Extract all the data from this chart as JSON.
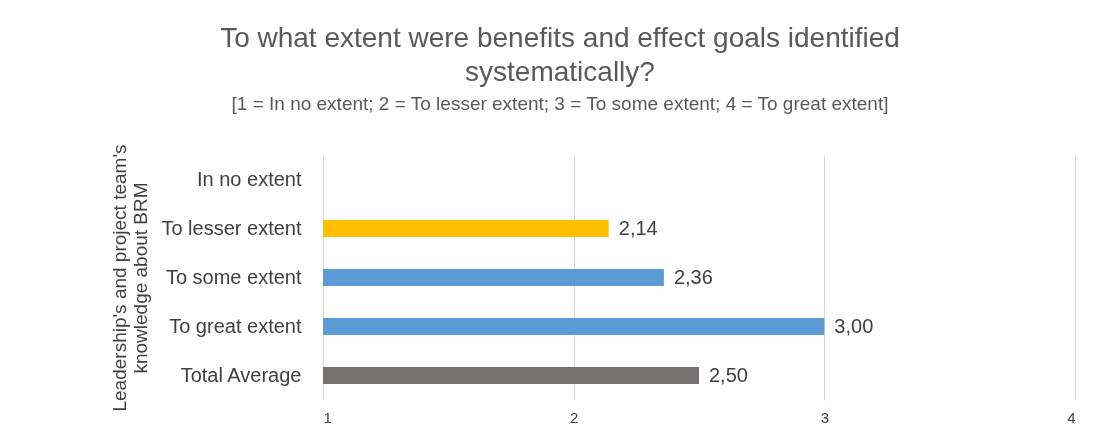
{
  "chart_data": {
    "type": "bar",
    "orientation": "horizontal",
    "title": "To what extent were benefits and effect goals identified systematically?",
    "subtitle": "[1 = In no extent; 2 = To lesser extent; 3 = To some extent; 4 = To great extent]",
    "ylabel": "Leadership's and project team's knowledge about BRM",
    "categories": [
      "In no extent",
      "To lesser extent",
      "To some extent",
      "To great extent",
      "Total Average"
    ],
    "values": [
      null,
      2.14,
      2.36,
      3.0,
      2.5
    ],
    "colors": [
      "#ffc000",
      "#ffc000",
      "#5b9bd5",
      "#5b9bd5",
      "#767171"
    ],
    "value_labels": [
      null,
      "2,14",
      "2,36",
      "3,00",
      "2,50"
    ],
    "xlim": [
      1,
      4
    ],
    "xticks": [
      1,
      2,
      3,
      4
    ],
    "grid": "x",
    "legend": false
  }
}
